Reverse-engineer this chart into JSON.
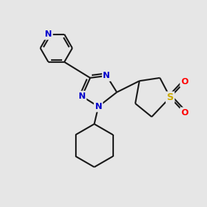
{
  "background_color": "#e6e6e6",
  "bond_color": "#1a1a1a",
  "atom_colors": {
    "N": "#0000cc",
    "S": "#ccaa00",
    "O": "#ff0000",
    "C": "#1a1a1a"
  },
  "figsize": [
    3.0,
    3.0
  ],
  "dpi": 100
}
